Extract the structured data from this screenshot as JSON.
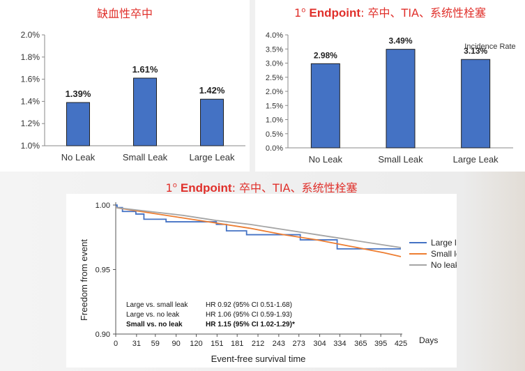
{
  "titles": {
    "ischemic_stroke": "缺血性卒中",
    "endpoint_prefix": "1",
    "endpoint_sup": "o",
    "endpoint_word": "Endpoint",
    "endpoint_rest": ": 卒中、TIA、系统性栓塞"
  },
  "colors": {
    "bar": "#4472c4",
    "title": "#e0302b",
    "large_leak": "#4472c4",
    "small_leak": "#ed7d31",
    "no_leak": "#a5a5a5"
  },
  "chart_data": [
    {
      "type": "bar",
      "title": "缺血性卒中",
      "categories": [
        "No Leak",
        "Small Leak",
        "Large Leak"
      ],
      "values": [
        1.39,
        1.61,
        1.42
      ],
      "value_labels": [
        "1.39%",
        "1.61%",
        "1.42%"
      ],
      "ylim": [
        1.0,
        2.0
      ],
      "yticks": [
        1.0,
        1.2,
        1.4,
        1.6,
        1.8,
        2.0
      ],
      "ytick_labels": [
        "1.0%",
        "1.2%",
        "1.4%",
        "1.6%",
        "1.8%",
        "2.0%"
      ],
      "grid": false
    },
    {
      "type": "bar",
      "title": "1o Endpoint: 卒中、TIA、系统性栓塞",
      "annotation": "Incidence Rate",
      "categories": [
        "No Leak",
        "Small Leak",
        "Large Leak"
      ],
      "values": [
        2.98,
        3.49,
        3.13
      ],
      "value_labels": [
        "2.98%",
        "3.49%",
        "3.13%"
      ],
      "ylim": [
        0.0,
        4.0
      ],
      "yticks": [
        0.0,
        0.5,
        1.0,
        1.5,
        2.0,
        2.5,
        3.0,
        3.5,
        4.0
      ],
      "ytick_labels": [
        "0.0%",
        "0.5%",
        "1.0%",
        "1.5%",
        "2.0%",
        "2.5%",
        "3.0%",
        "3.5%",
        "4.0%"
      ],
      "grid": false
    },
    {
      "type": "line",
      "title": "1o Endpoint: 卒中、TIA、系统性栓塞",
      "xlabel": "Event-free survival time",
      "ylabel": "Freedom from event",
      "x_unit": "Days",
      "xlim": [
        0,
        425
      ],
      "ylim": [
        0.9,
        1.0
      ],
      "xticks": [
        0,
        31,
        59,
        90,
        120,
        151,
        181,
        212,
        243,
        273,
        304,
        334,
        365,
        395,
        425
      ],
      "yticks": [
        0.9,
        0.95,
        1.0
      ],
      "ytick_labels": [
        "0.90",
        "0.95",
        "1.00"
      ],
      "legend_position": "right",
      "series": [
        {
          "name": "Large leak",
          "color": "#4472c4",
          "step": true,
          "x": [
            0,
            2,
            10,
            30,
            42,
            75,
            150,
            165,
            195,
            275,
            330,
            425
          ],
          "y": [
            1.0,
            0.998,
            0.995,
            0.993,
            0.989,
            0.987,
            0.985,
            0.98,
            0.977,
            0.973,
            0.966,
            0.966
          ]
        },
        {
          "name": "Small leak",
          "color": "#ed7d31",
          "step": false,
          "x": [
            0,
            50,
            100,
            150,
            200,
            250,
            300,
            350,
            400,
            425
          ],
          "y": [
            0.998,
            0.994,
            0.99,
            0.986,
            0.982,
            0.977,
            0.973,
            0.968,
            0.963,
            0.96
          ]
        },
        {
          "name": "No leak",
          "color": "#a5a5a5",
          "step": false,
          "x": [
            0,
            50,
            100,
            150,
            200,
            250,
            300,
            350,
            400,
            425
          ],
          "y": [
            0.998,
            0.995,
            0.992,
            0.988,
            0.985,
            0.981,
            0.977,
            0.973,
            0.969,
            0.967
          ]
        }
      ],
      "annotations": [
        {
          "left": "Large vs. small leak",
          "right": "HR 0.92 (95% CI 0.51-1.68)",
          "bold": false
        },
        {
          "left": "Large vs. no leak",
          "right": "HR 1.06 (95% CI 0.59-1.93)",
          "bold": false
        },
        {
          "left": "Small vs. no leak",
          "right": "HR 1.15 (95% CI 1.02-1.29)*",
          "bold": true
        }
      ]
    }
  ]
}
